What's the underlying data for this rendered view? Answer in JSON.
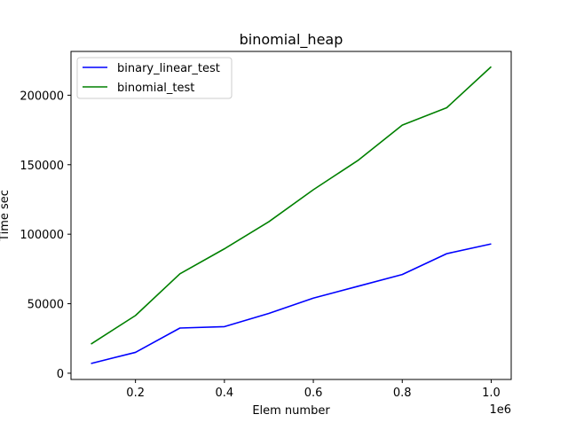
{
  "chart_data": {
    "type": "line",
    "title": "binomial_heap",
    "xlabel": "Elem number",
    "ylabel": "Time sec",
    "x_offset_text": "1e6",
    "x": [
      100000,
      200000,
      300000,
      400000,
      500000,
      600000,
      700000,
      800000,
      900000,
      1000000
    ],
    "series": [
      {
        "name": "binary_linear_test",
        "color": "#0000ff",
        "values": [
          7000,
          15000,
          32500,
          33500,
          43000,
          54000,
          62500,
          71000,
          86000,
          93000
        ]
      },
      {
        "name": "binomial_test",
        "color": "#008000",
        "values": [
          21000,
          41500,
          71500,
          89500,
          109000,
          132000,
          153000,
          178500,
          191000,
          220500
        ]
      }
    ],
    "xlim": [
      55000,
      1045000
    ],
    "ylim": [
      -4500,
      231500
    ],
    "xticks": [
      200000,
      400000,
      600000,
      800000,
      1000000
    ],
    "xtick_labels": [
      "0.2",
      "0.4",
      "0.6",
      "0.8",
      "1.0"
    ],
    "yticks": [
      0,
      50000,
      100000,
      150000,
      200000
    ],
    "ytick_labels": [
      "0",
      "50000",
      "100000",
      "150000",
      "200000"
    ],
    "grid": false,
    "legend_position": "upper-left"
  }
}
